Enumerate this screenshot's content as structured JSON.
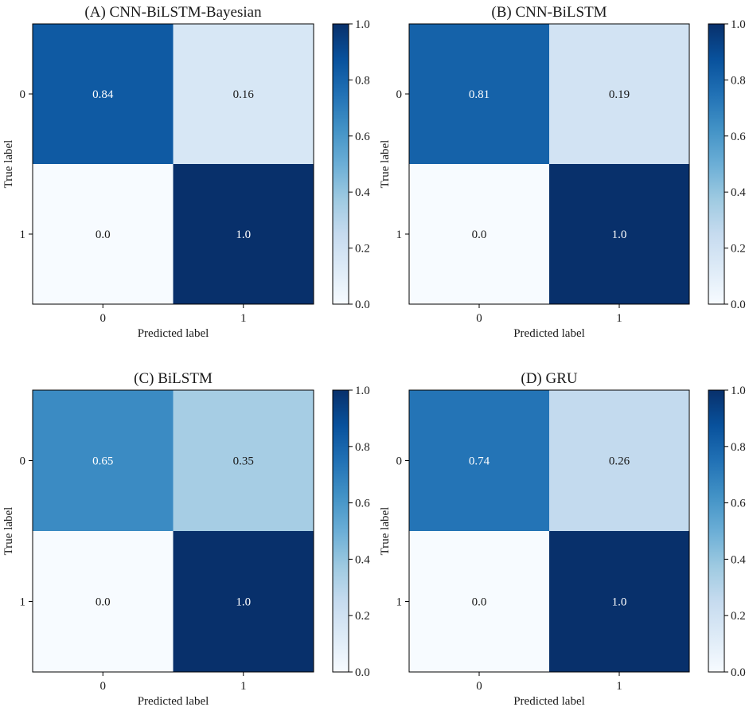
{
  "chart_data": [
    {
      "type": "heatmap",
      "title": "(A) CNN-BiLSTM-Bayesian",
      "xlabel": "Predicted label",
      "ylabel": "True label",
      "x_ticks": [
        "0",
        "1"
      ],
      "y_ticks": [
        "0",
        "1"
      ],
      "matrix": [
        [
          0.84,
          0.16
        ],
        [
          0.0,
          1.0
        ]
      ],
      "cell_labels": [
        [
          "0.84",
          "0.16"
        ],
        [
          "0.0",
          "1.0"
        ]
      ],
      "colorbar": {
        "range": [
          0.0,
          1.0
        ],
        "ticks": [
          "0.0",
          "0.2",
          "0.4",
          "0.6",
          "0.8",
          "1.0"
        ],
        "colormap": "Blues"
      }
    },
    {
      "type": "heatmap",
      "title": "(B) CNN-BiLSTM",
      "xlabel": "Predicted label",
      "ylabel": "True label",
      "x_ticks": [
        "0",
        "1"
      ],
      "y_ticks": [
        "0",
        "1"
      ],
      "matrix": [
        [
          0.81,
          0.19
        ],
        [
          0.0,
          1.0
        ]
      ],
      "cell_labels": [
        [
          "0.81",
          "0.19"
        ],
        [
          "0.0",
          "1.0"
        ]
      ],
      "colorbar": {
        "range": [
          0.0,
          1.0
        ],
        "ticks": [
          "0.0",
          "0.2",
          "0.4",
          "0.6",
          "0.8",
          "1.0"
        ],
        "colormap": "Blues"
      }
    },
    {
      "type": "heatmap",
      "title": "(C) BiLSTM",
      "xlabel": "Predicted label",
      "ylabel": "True label",
      "x_ticks": [
        "0",
        "1"
      ],
      "y_ticks": [
        "0",
        "1"
      ],
      "matrix": [
        [
          0.65,
          0.35
        ],
        [
          0.0,
          1.0
        ]
      ],
      "cell_labels": [
        [
          "0.65",
          "0.35"
        ],
        [
          "0.0",
          "1.0"
        ]
      ],
      "colorbar": {
        "range": [
          0.0,
          1.0
        ],
        "ticks": [
          "0.0",
          "0.2",
          "0.4",
          "0.6",
          "0.8",
          "1.0"
        ],
        "colormap": "Blues"
      }
    },
    {
      "type": "heatmap",
      "title": "(D) GRU",
      "xlabel": "Predicted label",
      "ylabel": "True label",
      "x_ticks": [
        "0",
        "1"
      ],
      "y_ticks": [
        "0",
        "1"
      ],
      "matrix": [
        [
          0.74,
          0.26
        ],
        [
          0.0,
          1.0
        ]
      ],
      "cell_labels": [
        [
          "0.74",
          "0.26"
        ],
        [
          "0.0",
          "1.0"
        ]
      ],
      "colorbar": {
        "range": [
          0.0,
          1.0
        ],
        "ticks": [
          "0.0",
          "0.2",
          "0.4",
          "0.6",
          "0.8",
          "1.0"
        ],
        "colormap": "Blues"
      }
    }
  ]
}
